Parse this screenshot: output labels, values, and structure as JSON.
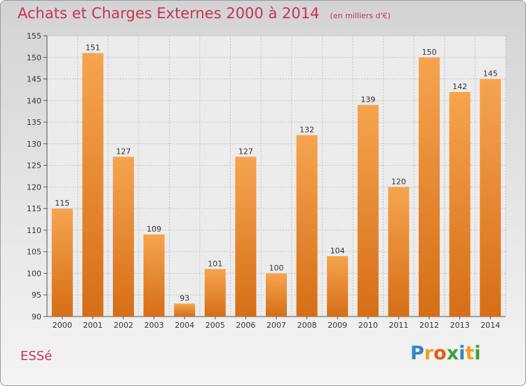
{
  "chart_data": {
    "type": "bar",
    "title": "Achats et Charges Externes 2000 à 2014",
    "unit": "(en milliers d'€)",
    "categories": [
      "2000",
      "2001",
      "2002",
      "2003",
      "2004",
      "2005",
      "2006",
      "2007",
      "2008",
      "2009",
      "2010",
      "2011",
      "2012",
      "2013",
      "2014"
    ],
    "values": [
      115,
      151,
      127,
      109,
      93,
      101,
      127,
      100,
      132,
      104,
      139,
      120,
      150,
      142,
      145
    ],
    "ylim": [
      90,
      155
    ],
    "yticks": [
      90,
      95,
      100,
      105,
      110,
      115,
      120,
      125,
      130,
      135,
      140,
      145,
      150,
      155
    ],
    "grid": true,
    "bar_color_top": "#f6a44f",
    "bar_color_bottom": "#d66e16"
  },
  "city": "ESSé",
  "logo": {
    "letters": [
      "P",
      "r",
      "o",
      "x",
      "i",
      "t",
      "i"
    ],
    "colors": [
      "#2f86c9",
      "#f0a020",
      "#e85a1a",
      "#3aa040",
      "#2f86c9",
      "#f0a020",
      "#3aa040"
    ]
  }
}
